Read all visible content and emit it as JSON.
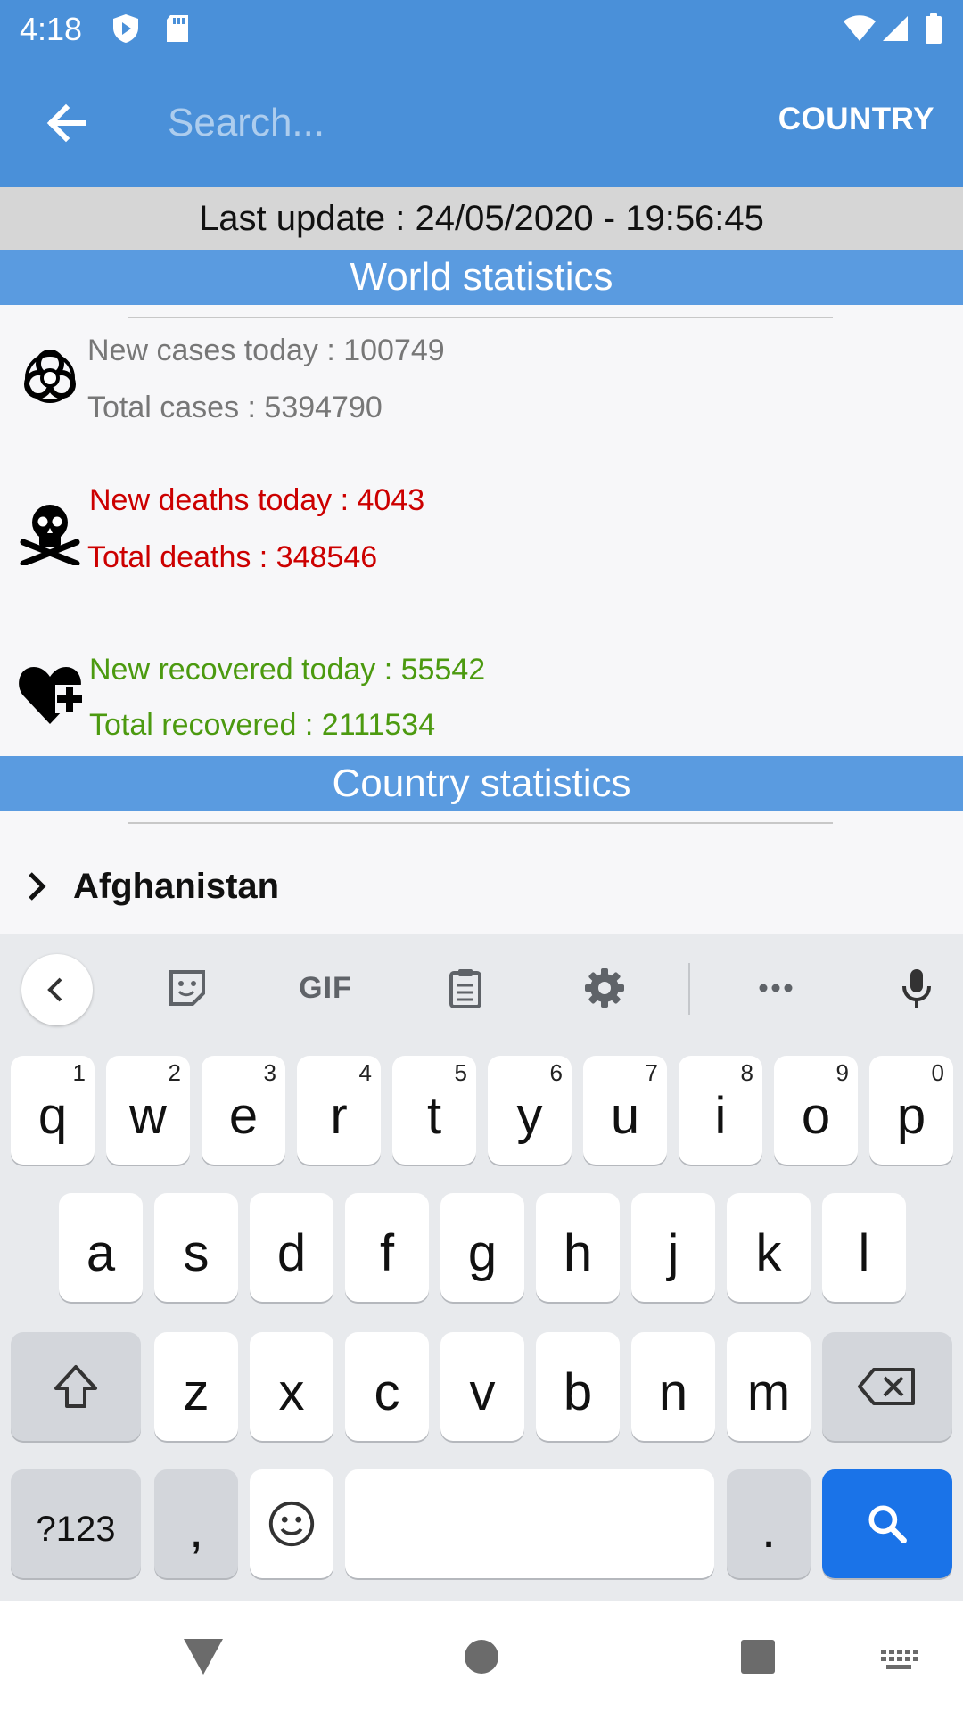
{
  "status_bar": {
    "time": "4:18"
  },
  "app_bar": {
    "search_placeholder": "Search...",
    "country_button": "COUNTRY"
  },
  "last_update": "Last update : 24/05/2020 - 19:56:45",
  "world": {
    "title": "World statistics",
    "new_cases": "New cases today : 100749",
    "total_cases": "Total cases : 5394790",
    "new_deaths": "New deaths today : 4043",
    "total_deaths": "Total deaths : 348546",
    "new_recovered": "New recovered today : 55542",
    "total_recovered": "Total recovered : 2111534"
  },
  "country_section": {
    "title": "Country statistics",
    "first_country": "Afghanistan"
  },
  "keyboard": {
    "toolbar_gif": "GIF",
    "row1": [
      {
        "key": "q",
        "hint": "1"
      },
      {
        "key": "w",
        "hint": "2"
      },
      {
        "key": "e",
        "hint": "3"
      },
      {
        "key": "r",
        "hint": "4"
      },
      {
        "key": "t",
        "hint": "5"
      },
      {
        "key": "y",
        "hint": "6"
      },
      {
        "key": "u",
        "hint": "7"
      },
      {
        "key": "i",
        "hint": "8"
      },
      {
        "key": "o",
        "hint": "9"
      },
      {
        "key": "p",
        "hint": "0"
      }
    ],
    "row2": [
      "a",
      "s",
      "d",
      "f",
      "g",
      "h",
      "j",
      "k",
      "l"
    ],
    "row3": [
      "z",
      "x",
      "c",
      "v",
      "b",
      "n",
      "m"
    ],
    "symbols_key": "?123",
    "comma_key": ",",
    "period_key": "."
  },
  "colors": {
    "app_bar": "#4a90d9",
    "section_header": "#5a9be0",
    "deaths": "#cc0000",
    "recovered": "#4c9a10",
    "search_key": "#1a73e8"
  }
}
